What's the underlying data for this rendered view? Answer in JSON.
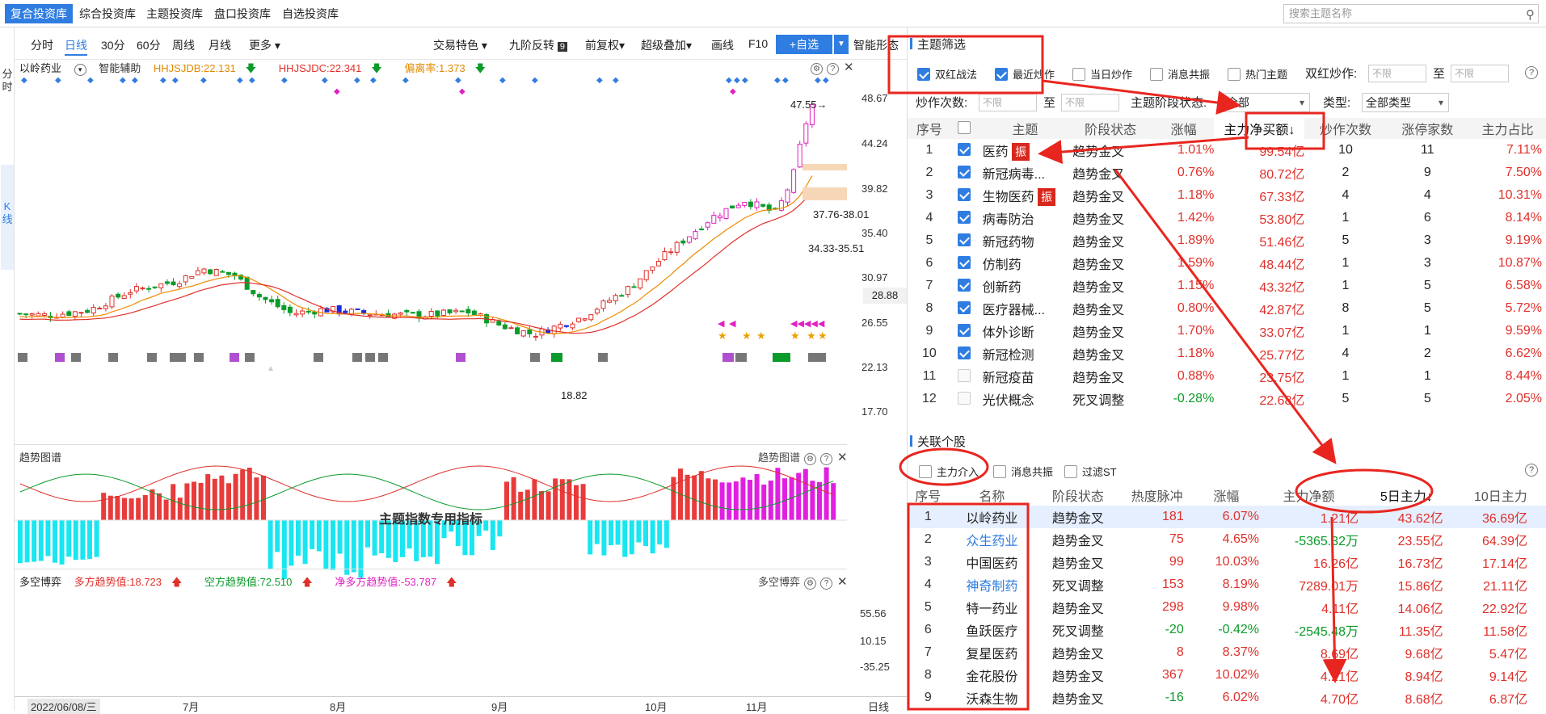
{
  "top_tabs": [
    "复合投资库",
    "综合投资库",
    "主题投资库",
    "盘口投资库",
    "自选投资库"
  ],
  "search": {
    "placeholder": "搜索主题名称"
  },
  "left_strip": {
    "fenshi": "分时",
    "kline": "K线"
  },
  "toolbar": {
    "periods": [
      "分时",
      "日线",
      "30分",
      "60分",
      "周线",
      "月线",
      "更多"
    ],
    "active_period": "日线",
    "right_items": [
      "交易特色",
      "九阶反转",
      "前复权",
      "超级叠加",
      "画线",
      "F10"
    ],
    "add_fav": "+自选",
    "smart": "智能形态"
  },
  "indicator_row": {
    "stock": "以岭药业",
    "assist": "智能辅助",
    "hhjsjdb": "HHJSJDB:22.131",
    "hhjsjdc": "HHJSJDC:22.341",
    "deviation": "偏离率:1.373"
  },
  "price_axis": [
    "48.67",
    "44.24",
    "39.82",
    "35.40",
    "30.97",
    "26.55",
    "22.13",
    "17.70"
  ],
  "price_tags": {
    "high": "47.55",
    "zone1": "37.76-38.01",
    "zone2": "34.33-35.51",
    "low": "18.82",
    "current": "28.88"
  },
  "trend_panel": {
    "title": "趋势图谱",
    "title_right": "趋势图谱",
    "center": "主题指数专用指标"
  },
  "game_panel": {
    "title": "多空博弈",
    "title_right": "多空博弈",
    "long": "多方趋势值:18.723",
    "short": "空方趋势值:72.510",
    "net": "净多方趋势值:-53.787",
    "axis": [
      "55.56",
      "10.15",
      "-35.25"
    ]
  },
  "date_axis": {
    "first": "2022/06/08/三",
    "months": [
      "7月",
      "8月",
      "9月",
      "10月",
      "11月"
    ],
    "period": "日线"
  },
  "theme_filter": {
    "title": "主题筛选",
    "checks": [
      {
        "label": "双红战法",
        "checked": true
      },
      {
        "label": "最近炒作",
        "checked": true
      },
      {
        "label": "当日炒作",
        "checked": false
      },
      {
        "label": "消息共振",
        "checked": false
      },
      {
        "label": "热门主题",
        "checked": false
      }
    ],
    "double_red_label": "双红炒作:",
    "unlimited": "不限",
    "to": "至",
    "count_label": "炒作次数:",
    "stage_label": "主题阶段状态:",
    "stage_value": "全部",
    "type_label": "类型:",
    "type_value": "全部类型",
    "columns": [
      "序号",
      "",
      "主题",
      "阶段状态",
      "涨幅",
      "主力净买额↓",
      "炒作次数",
      "涨停家数",
      "主力占比"
    ],
    "rows": [
      {
        "seq": "1",
        "checked": true,
        "name": "医药",
        "zhen": "振",
        "stage": "趋势金叉",
        "chg": "1.01%",
        "net": "99.54亿",
        "times": "10",
        "limit": "11",
        "ratio": "7.11%"
      },
      {
        "seq": "2",
        "checked": true,
        "name": "新冠病毒...",
        "zhen": "",
        "stage": "趋势金叉",
        "chg": "0.76%",
        "net": "80.72亿",
        "times": "2",
        "limit": "9",
        "ratio": "7.50%"
      },
      {
        "seq": "3",
        "checked": true,
        "name": "生物医药",
        "zhen": "振",
        "stage": "趋势金叉",
        "chg": "1.18%",
        "net": "67.33亿",
        "times": "4",
        "limit": "4",
        "ratio": "10.31%"
      },
      {
        "seq": "4",
        "checked": true,
        "name": "病毒防治",
        "zhen": "",
        "stage": "趋势金叉",
        "chg": "1.42%",
        "net": "53.80亿",
        "times": "1",
        "limit": "6",
        "ratio": "8.14%"
      },
      {
        "seq": "5",
        "checked": true,
        "name": "新冠药物",
        "zhen": "",
        "stage": "趋势金叉",
        "chg": "1.89%",
        "net": "51.46亿",
        "times": "5",
        "limit": "3",
        "ratio": "9.19%"
      },
      {
        "seq": "6",
        "checked": true,
        "name": "仿制药",
        "zhen": "",
        "stage": "趋势金叉",
        "chg": "1.59%",
        "net": "48.44亿",
        "times": "1",
        "limit": "3",
        "ratio": "10.87%"
      },
      {
        "seq": "7",
        "checked": true,
        "name": "创新药",
        "zhen": "",
        "stage": "趋势金叉",
        "chg": "1.15%",
        "net": "43.32亿",
        "times": "1",
        "limit": "5",
        "ratio": "6.58%"
      },
      {
        "seq": "8",
        "checked": true,
        "name": "医疗器械...",
        "zhen": "",
        "stage": "趋势金叉",
        "chg": "0.80%",
        "net": "42.87亿",
        "times": "8",
        "limit": "5",
        "ratio": "5.72%"
      },
      {
        "seq": "9",
        "checked": true,
        "name": "体外诊断",
        "zhen": "",
        "stage": "趋势金叉",
        "chg": "1.70%",
        "net": "33.07亿",
        "times": "1",
        "limit": "1",
        "ratio": "9.59%"
      },
      {
        "seq": "10",
        "checked": true,
        "name": "新冠检测",
        "zhen": "",
        "stage": "趋势金叉",
        "chg": "1.18%",
        "net": "25.77亿",
        "times": "4",
        "limit": "2",
        "ratio": "6.62%"
      },
      {
        "seq": "11",
        "checked": false,
        "name": "新冠疫苗",
        "zhen": "",
        "stage": "趋势金叉",
        "chg": "0.88%",
        "net": "23.75亿",
        "times": "1",
        "limit": "1",
        "ratio": "8.44%"
      },
      {
        "seq": "12",
        "checked": false,
        "name": "光伏概念",
        "zhen": "",
        "stage": "死叉调整",
        "chg": "-0.28%",
        "net": "22.68亿",
        "times": "5",
        "limit": "5",
        "ratio": "2.05%"
      }
    ]
  },
  "related_stocks": {
    "title": "关联个股",
    "checks": [
      {
        "label": "主力介入",
        "checked": false
      },
      {
        "label": "消息共振",
        "checked": false
      },
      {
        "label": "过滤ST",
        "checked": false
      }
    ],
    "columns": [
      "序号",
      "名称",
      "阶段状态",
      "热度脉冲",
      "涨幅",
      "主力净额",
      "5日主力↓",
      "10日主力"
    ],
    "rows": [
      {
        "seq": "1",
        "name": "以岭药业",
        "link": false,
        "stage": "趋势金叉",
        "heat": "181",
        "chg": "6.07%",
        "net": "1.21亿",
        "d5": "43.62亿",
        "d10": "36.69亿"
      },
      {
        "seq": "2",
        "name": "众生药业",
        "link": true,
        "stage": "趋势金叉",
        "heat": "75",
        "chg": "4.65%",
        "net": "-5365.32万",
        "d5": "23.55亿",
        "d10": "64.39亿"
      },
      {
        "seq": "3",
        "name": "中国医药",
        "link": false,
        "stage": "趋势金叉",
        "heat": "99",
        "chg": "10.03%",
        "net": "16.26亿",
        "d5": "16.73亿",
        "d10": "17.14亿"
      },
      {
        "seq": "4",
        "name": "神奇制药",
        "link": true,
        "stage": "死叉调整",
        "heat": "153",
        "chg": "8.19%",
        "net": "7289.01万",
        "d5": "15.86亿",
        "d10": "21.11亿"
      },
      {
        "seq": "5",
        "name": "特一药业",
        "link": false,
        "stage": "趋势金叉",
        "heat": "298",
        "chg": "9.98%",
        "net": "4.11亿",
        "d5": "14.06亿",
        "d10": "22.92亿"
      },
      {
        "seq": "6",
        "name": "鱼跃医疗",
        "link": false,
        "stage": "死叉调整",
        "heat": "-20",
        "chg": "-0.42%",
        "net": "-2545.48万",
        "d5": "11.35亿",
        "d10": "11.58亿"
      },
      {
        "seq": "7",
        "name": "复星医药",
        "link": false,
        "stage": "趋势金叉",
        "heat": "8",
        "chg": "8.37%",
        "net": "8.69亿",
        "d5": "9.68亿",
        "d10": "5.47亿"
      },
      {
        "seq": "8",
        "name": "金花股份",
        "link": false,
        "stage": "趋势金叉",
        "heat": "367",
        "chg": "10.02%",
        "net": "4.21亿",
        "d5": "8.94亿",
        "d10": "9.14亿"
      },
      {
        "seq": "9",
        "name": "沃森生物",
        "link": false,
        "stage": "趋势金叉",
        "heat": "-16",
        "chg": "6.02%",
        "net": "4.70亿",
        "d5": "8.68亿",
        "d10": "6.87亿"
      }
    ]
  },
  "colors": {
    "accent": "#2f7de1",
    "up": "#e0302a",
    "down": "#0b9b2a",
    "annotation": "#e8261f"
  }
}
